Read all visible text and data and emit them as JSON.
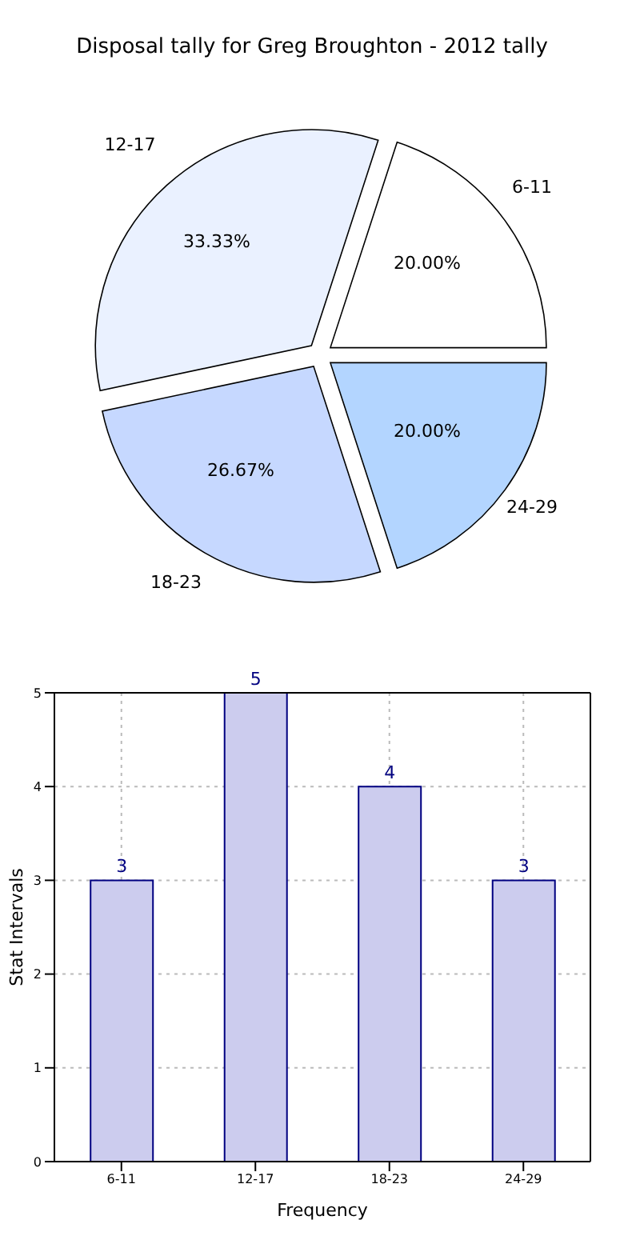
{
  "chart_data": [
    {
      "type": "pie",
      "title": "Disposal tally for Greg Broughton - 2012 tally",
      "categories": [
        "6-11",
        "12-17",
        "18-23",
        "24-29"
      ],
      "values": [
        20,
        33.33,
        26.67,
        20
      ],
      "colors": [
        "#ffffff",
        "#eaf1ff",
        "#c6d8ff",
        "#b3d5ff"
      ],
      "value_labels": [
        "20.00%",
        "33.33%",
        "26.67%",
        "20.00%"
      ]
    },
    {
      "type": "bar",
      "categories": [
        "6-11",
        "12-17",
        "18-23",
        "24-29"
      ],
      "values": [
        3,
        5,
        4,
        3
      ],
      "color": "#ccccee",
      "ylim": [
        0,
        5
      ],
      "yticks": [
        0,
        1,
        2,
        3,
        4,
        5
      ],
      "xlabel": "Frequency",
      "ylabel": "Stat Intervals",
      "grid": true,
      "data_labels": true
    }
  ]
}
